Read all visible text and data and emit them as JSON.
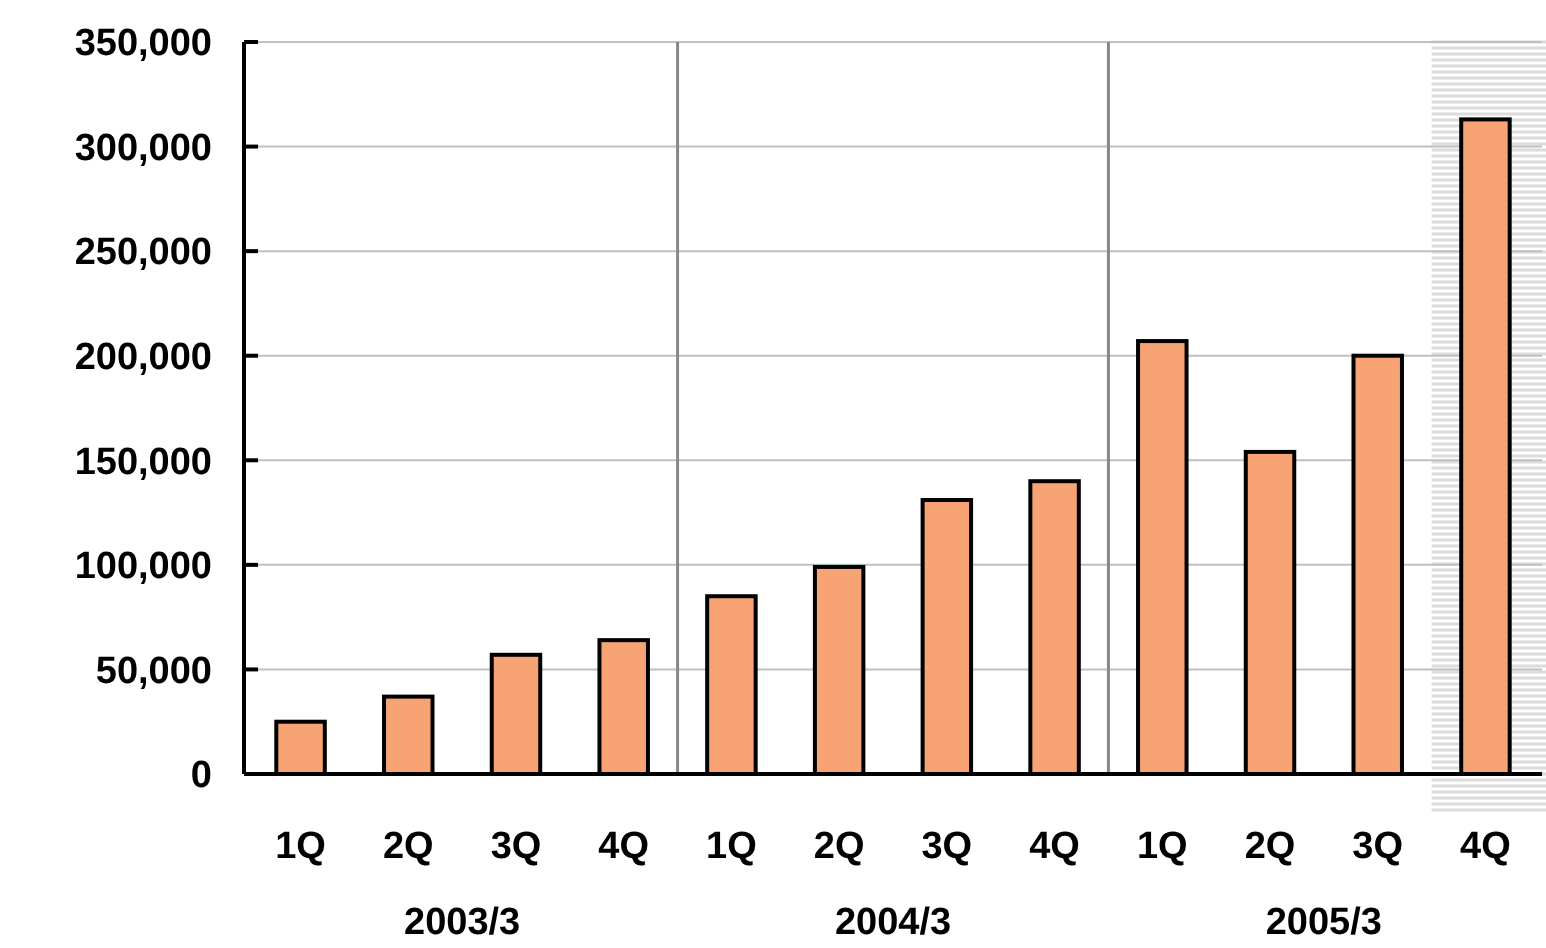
{
  "chart_data": {
    "type": "bar",
    "categories": [
      "1Q",
      "2Q",
      "3Q",
      "4Q",
      "1Q",
      "2Q",
      "3Q",
      "4Q",
      "1Q",
      "2Q",
      "3Q",
      "4Q"
    ],
    "values": [
      25000,
      37000,
      57000,
      64000,
      85000,
      99000,
      131000,
      140000,
      207000,
      154000,
      200000,
      313000
    ],
    "color": "#f8a374",
    "ylim": [
      0,
      350000
    ],
    "yticks": [
      {
        "value": 0,
        "label": "0"
      },
      {
        "value": 50000,
        "label": "50,000"
      },
      {
        "value": 100000,
        "label": "100,000"
      },
      {
        "value": 150000,
        "label": "150,000"
      },
      {
        "value": 200000,
        "label": "200,000"
      },
      {
        "value": 250000,
        "label": "250,000"
      },
      {
        "value": 300000,
        "label": "300,000"
      },
      {
        "value": 350000,
        "label": "350,000"
      }
    ],
    "grid": "y",
    "annotations": [
      "2003/3",
      "2004/3",
      "2005/3"
    ]
  }
}
